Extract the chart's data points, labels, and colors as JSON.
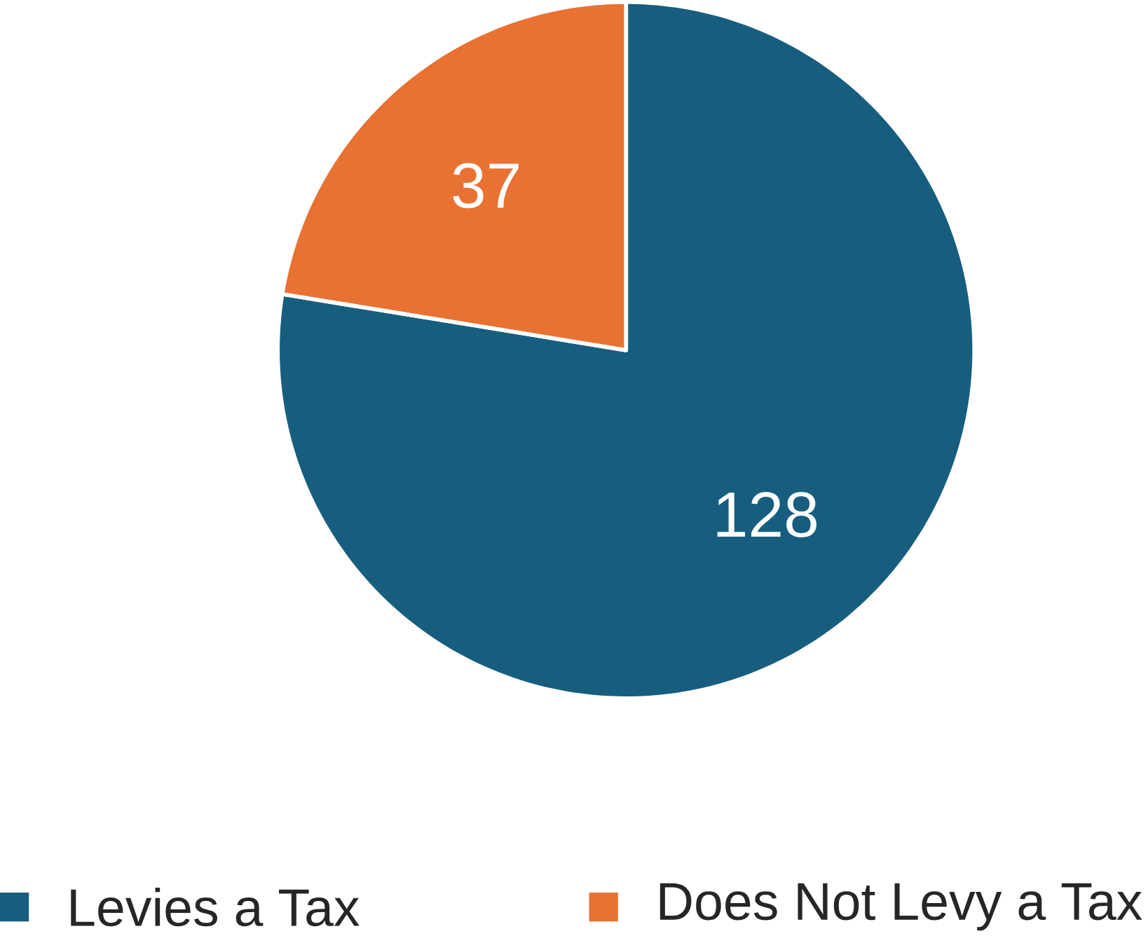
{
  "chart_data": {
    "type": "pie",
    "categories": [
      "Levies a Tax",
      "Does Not Levy a Tax"
    ],
    "values": [
      128,
      37
    ],
    "colors": [
      "#175e7e",
      "#e97132"
    ],
    "data_labels": true,
    "legend": "bottom"
  }
}
